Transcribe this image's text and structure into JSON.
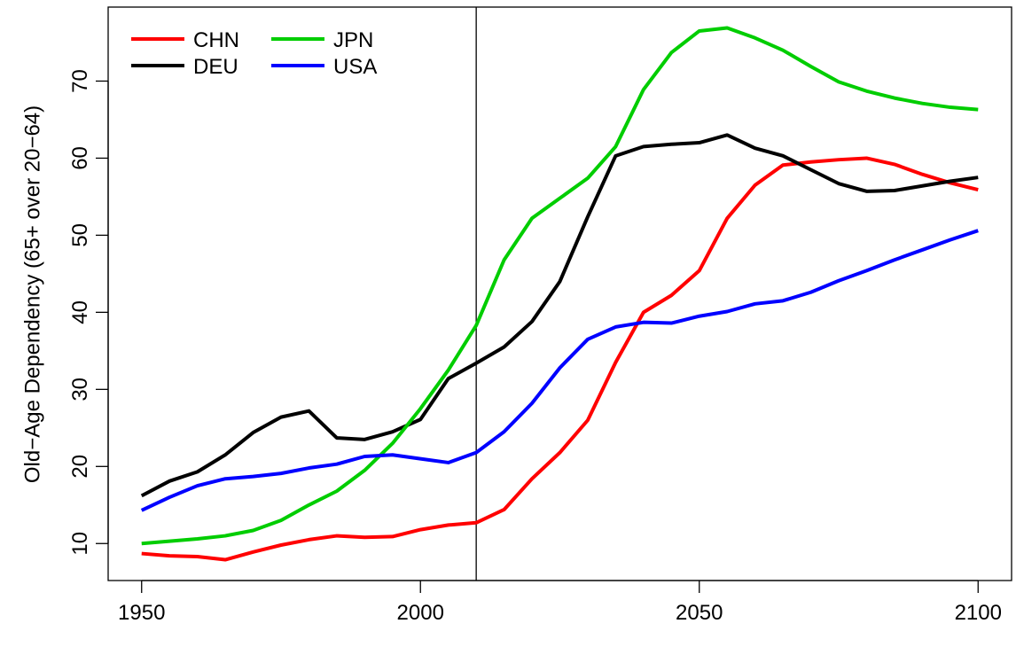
{
  "chart_data": {
    "type": "line",
    "ylabel": "Old−Age Dependency (65+ over 20−64)",
    "x": [
      1950,
      1955,
      1960,
      1965,
      1970,
      1975,
      1980,
      1985,
      1990,
      1995,
      2000,
      2005,
      2010,
      2015,
      2020,
      2025,
      2030,
      2035,
      2040,
      2045,
      2050,
      2055,
      2060,
      2065,
      2070,
      2075,
      2080,
      2085,
      2090,
      2095,
      2100
    ],
    "series": [
      {
        "name": "CHN",
        "color": "#ff0000",
        "values": [
          8.7,
          8.4,
          8.3,
          7.9,
          8.9,
          9.8,
          10.5,
          11.0,
          10.8,
          10.9,
          11.8,
          12.4,
          12.7,
          14.4,
          18.4,
          21.8,
          26.0,
          33.5,
          40.0,
          42.2,
          45.4,
          52.2,
          56.5,
          59.1,
          59.5,
          59.8,
          60.0,
          59.2,
          57.9,
          56.8,
          55.9
        ]
      },
      {
        "name": "DEU",
        "color": "#000000",
        "values": [
          16.2,
          18.1,
          19.3,
          21.5,
          24.4,
          26.4,
          27.2,
          23.7,
          23.5,
          24.5,
          26.1,
          31.4,
          33.4,
          35.5,
          38.8,
          44.0,
          52.4,
          60.3,
          61.5,
          61.8,
          62.0,
          63.0,
          61.3,
          60.3,
          58.5,
          56.7,
          55.7,
          55.8,
          56.4,
          57.0,
          57.5
        ]
      },
      {
        "name": "JPN",
        "color": "#00cd00",
        "values": [
          10.0,
          10.3,
          10.6,
          11.0,
          11.7,
          13.0,
          15.0,
          16.8,
          19.5,
          23.0,
          27.5,
          32.5,
          38.3,
          46.8,
          52.2,
          54.8,
          57.4,
          61.5,
          68.9,
          73.7,
          76.5,
          76.9,
          75.6,
          74.0,
          71.9,
          69.9,
          68.7,
          67.8,
          67.1,
          66.6,
          66.3
        ]
      },
      {
        "name": "USA",
        "color": "#0000ff",
        "values": [
          14.3,
          16.0,
          17.5,
          18.4,
          18.7,
          19.1,
          19.8,
          20.3,
          21.3,
          21.5,
          21.0,
          20.5,
          21.8,
          24.5,
          28.2,
          32.8,
          36.5,
          38.1,
          38.7,
          38.6,
          39.5,
          40.1,
          41.1,
          41.5,
          42.6,
          44.1,
          45.4,
          46.8,
          48.1,
          49.4,
          50.6
        ]
      }
    ],
    "xlim": [
      1944,
      2106
    ],
    "xticks": [
      1950,
      2000,
      2050,
      2100
    ],
    "ylim": [
      5.2,
      79.6
    ],
    "yticks": [
      10,
      20,
      30,
      40,
      50,
      60,
      70
    ],
    "vline": 2010,
    "legend": "top-left"
  }
}
